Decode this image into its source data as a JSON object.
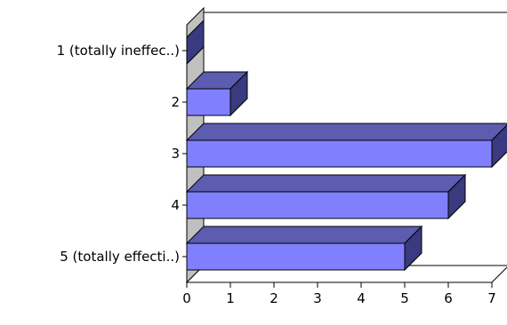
{
  "chart_data": {
    "type": "bar",
    "orientation": "horizontal",
    "style": "3d",
    "categories": [
      "1 (totally ineffec..)",
      "2",
      "3",
      "4",
      "5 (totally effecti..)"
    ],
    "values": [
      0,
      1,
      7,
      6,
      5
    ],
    "xlim": [
      0,
      7
    ],
    "xticks": [
      "0",
      "1",
      "2",
      "3",
      "4",
      "5",
      "6",
      "7"
    ],
    "title": "",
    "xlabel": "",
    "ylabel": "",
    "grid": false,
    "legend": "none",
    "colors": {
      "bar_front": "#8080ff",
      "bar_top": "#5c5cb0",
      "bar_side": "#3a3a80",
      "axis_wall": "#c0c0c0",
      "axis_wall_top": "#9e9e9e",
      "outline": "#000000"
    }
  }
}
